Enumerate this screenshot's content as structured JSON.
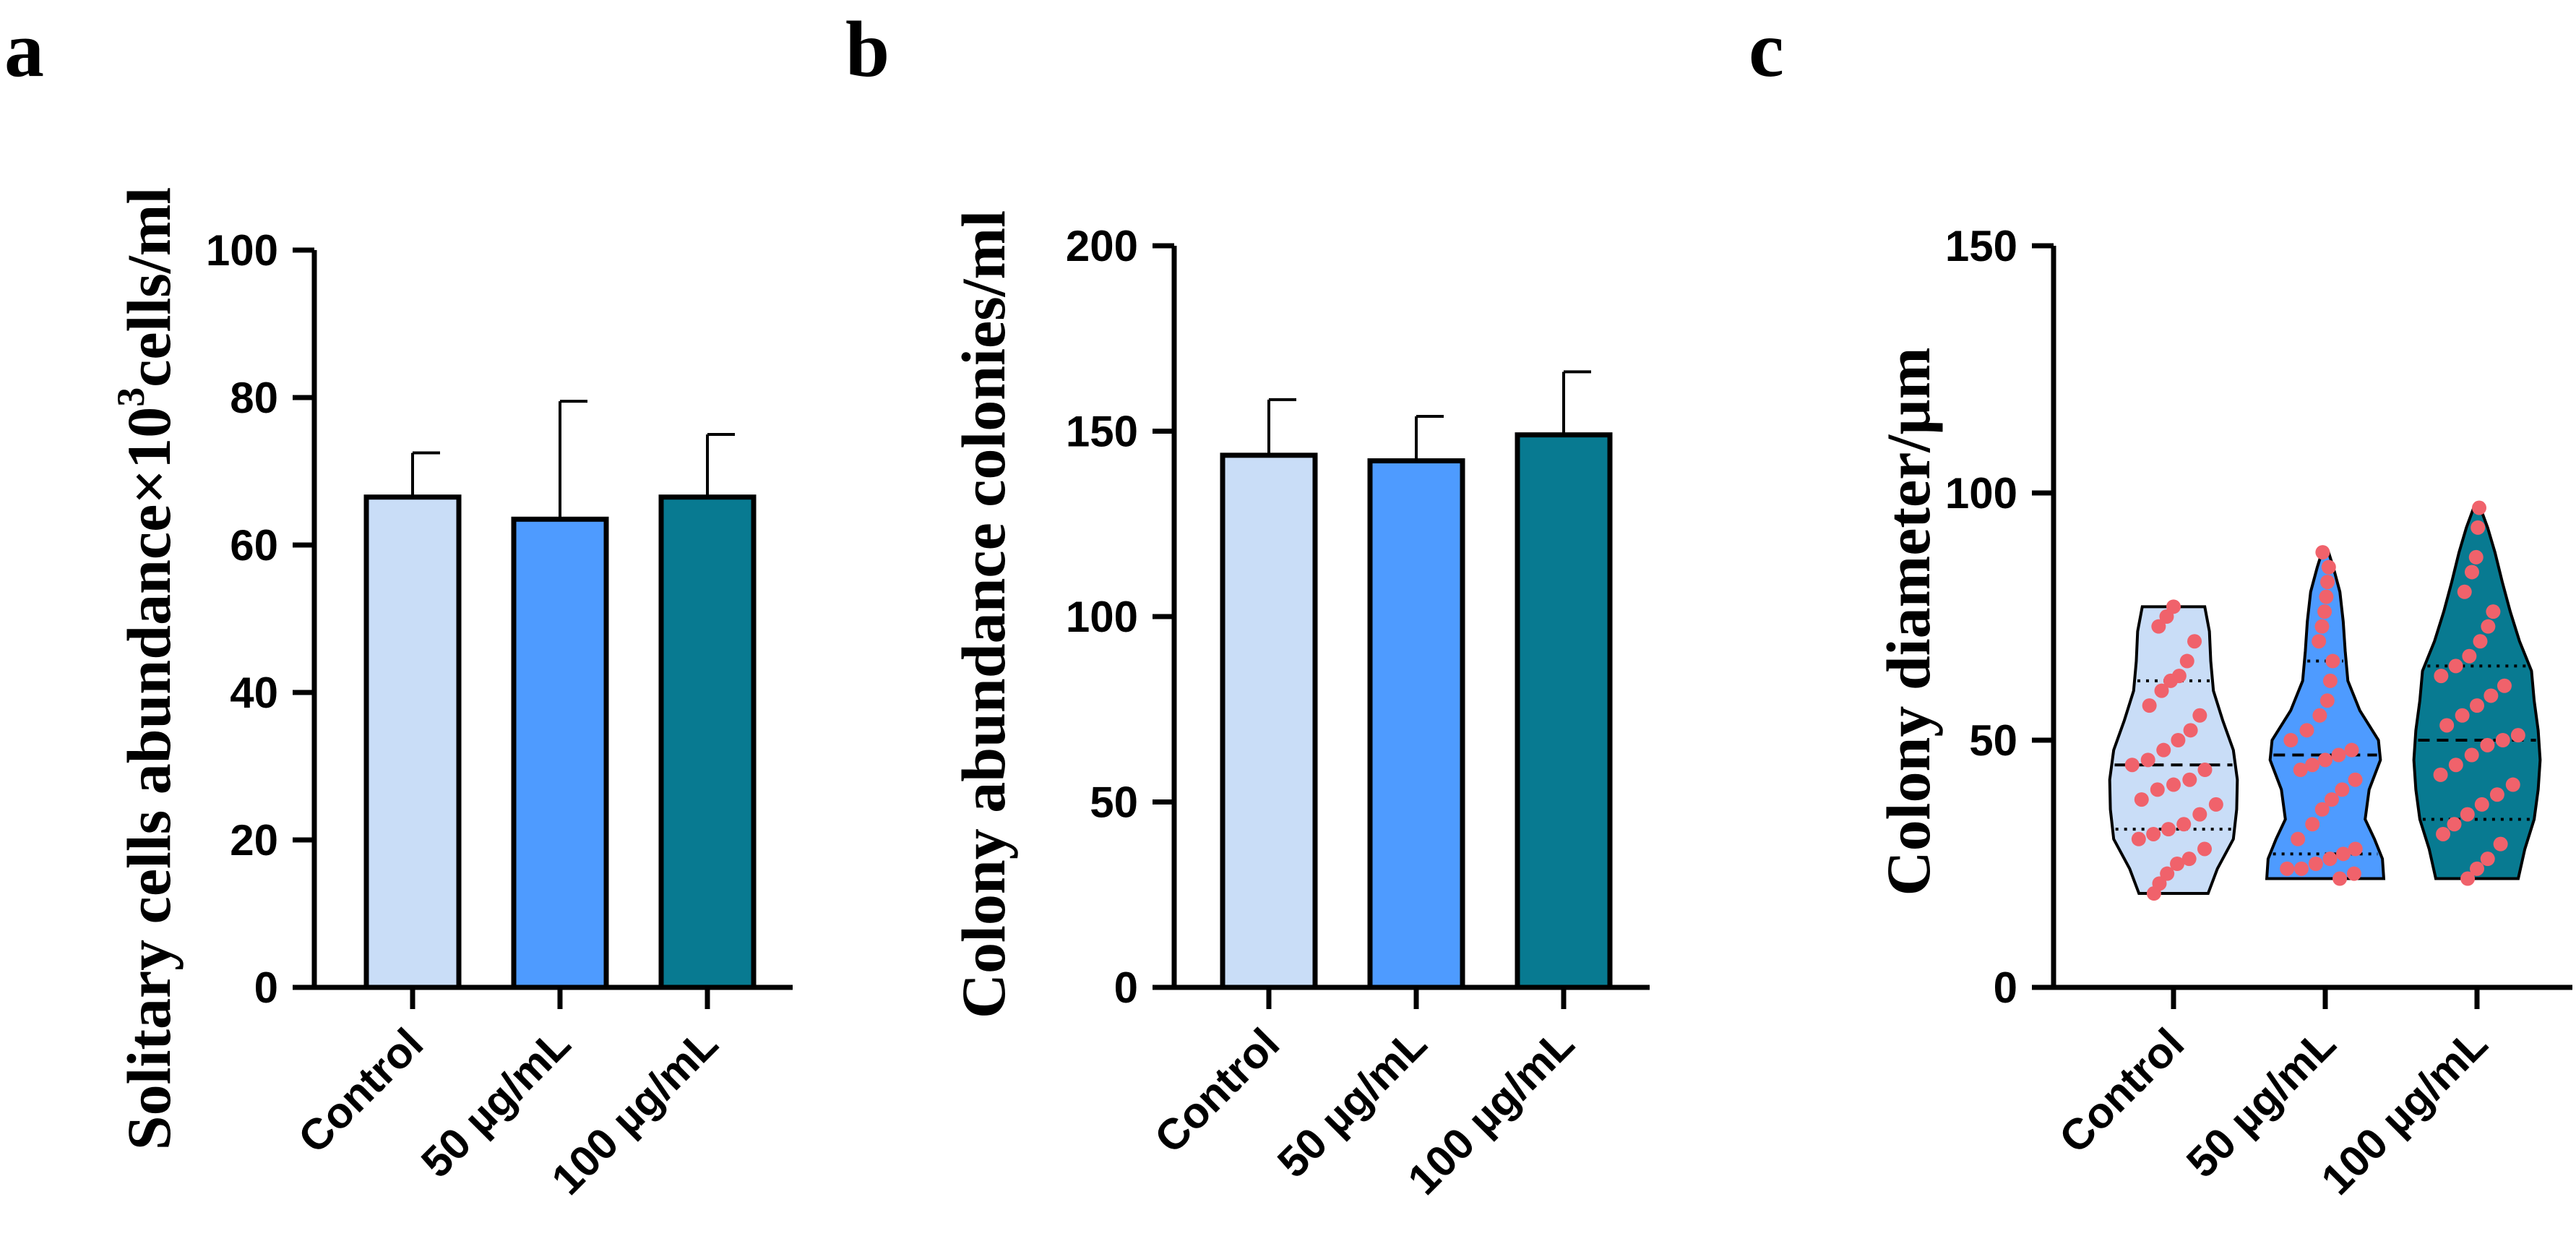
{
  "chart_data": [
    {
      "type": "bar",
      "panel": "a",
      "ylabel": "Solitary cells abundance×10³cells/ml",
      "ylabel_main": "Solitary cells abundance×10",
      "ylabel_sup": "3",
      "ylabel_tail": "cells/ml",
      "categories": [
        "Control",
        "50 µg/mL",
        "100 µg/mL"
      ],
      "values": [
        66.5,
        63.5,
        66.5
      ],
      "errors": [
        6,
        16,
        8.5
      ],
      "colors": [
        "#c9ddf7",
        "#4e9bff",
        "#087a91"
      ],
      "ylim": [
        0,
        100
      ],
      "yticks": [
        0,
        20,
        40,
        60,
        80,
        100
      ]
    },
    {
      "type": "bar",
      "panel": "b",
      "ylabel": "Colony abundance colonies/ml",
      "categories": [
        "Control",
        "50 µg/mL",
        "100 µg/mL"
      ],
      "values": [
        143.5,
        142,
        149
      ],
      "errors": [
        15,
        12,
        17
      ],
      "colors": [
        "#c9ddf7",
        "#4e9bff",
        "#087a91"
      ],
      "ylim": [
        0,
        200
      ],
      "yticks": [
        0,
        50,
        100,
        150,
        200
      ]
    },
    {
      "type": "violin",
      "panel": "c",
      "ylabel": "Colony diameter/µm",
      "categories": [
        "Control",
        "50 µg/mL",
        "100 µg/mL"
      ],
      "colors": [
        "#c9ddf7",
        "#4e9bff",
        "#087a91"
      ],
      "ylim": [
        0,
        150
      ],
      "yticks": [
        0,
        50,
        100,
        150
      ],
      "series": [
        {
          "name": "Control",
          "min": 19,
          "max": 77,
          "q1": 32,
          "median": 45,
          "q3": 62,
          "profile": [
            [
              19,
              0.52
            ],
            [
              24,
              0.66
            ],
            [
              30,
              0.9
            ],
            [
              36,
              0.95
            ],
            [
              42,
              0.96
            ],
            [
              48,
              0.9
            ],
            [
              54,
              0.74
            ],
            [
              60,
              0.6
            ],
            [
              66,
              0.56
            ],
            [
              72,
              0.54
            ],
            [
              77,
              0.47
            ]
          ],
          "points": [
            19,
            21,
            23,
            25,
            26,
            28,
            30,
            31,
            32,
            33,
            35,
            37,
            38,
            40,
            41,
            42,
            44,
            45,
            46,
            48,
            50,
            52,
            55,
            57,
            60,
            62,
            63,
            66,
            70,
            73,
            75,
            77
          ]
        },
        {
          "name": "50 µg/mL",
          "min": 22,
          "max": 88,
          "q1": 27,
          "median": 47,
          "q3": 66,
          "profile": [
            [
              22,
              0.88
            ],
            [
              26,
              0.86
            ],
            [
              30,
              0.74
            ],
            [
              34,
              0.6
            ],
            [
              40,
              0.66
            ],
            [
              46,
              0.83
            ],
            [
              50,
              0.8
            ],
            [
              56,
              0.52
            ],
            [
              62,
              0.34
            ],
            [
              68,
              0.3
            ],
            [
              74,
              0.27
            ],
            [
              80,
              0.22
            ],
            [
              85,
              0.12
            ],
            [
              88,
              0.05
            ]
          ],
          "points": [
            22,
            23,
            24,
            24,
            25,
            26,
            27,
            28,
            30,
            33,
            36,
            38,
            40,
            42,
            44,
            45,
            46,
            47,
            48,
            50,
            52,
            55,
            58,
            62,
            66,
            70,
            73,
            76,
            79,
            82,
            85,
            88
          ]
        },
        {
          "name": "100 µg/mL",
          "min": 22,
          "max": 97,
          "q1": 34,
          "median": 50,
          "q3": 65,
          "profile": [
            [
              22,
              0.62
            ],
            [
              28,
              0.72
            ],
            [
              34,
              0.86
            ],
            [
              40,
              0.92
            ],
            [
              46,
              0.95
            ],
            [
              52,
              0.92
            ],
            [
              58,
              0.86
            ],
            [
              64,
              0.82
            ],
            [
              70,
              0.64
            ],
            [
              76,
              0.5
            ],
            [
              82,
              0.38
            ],
            [
              88,
              0.27
            ],
            [
              93,
              0.16
            ],
            [
              97,
              0.05
            ]
          ],
          "points": [
            22,
            24,
            26,
            29,
            31,
            33,
            35,
            37,
            39,
            41,
            43,
            45,
            47,
            49,
            50,
            51,
            53,
            55,
            57,
            59,
            61,
            63,
            65,
            67,
            70,
            73,
            76,
            80,
            84,
            87,
            93,
            97
          ]
        }
      ]
    }
  ]
}
